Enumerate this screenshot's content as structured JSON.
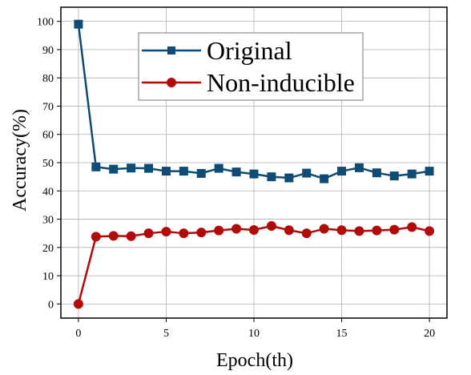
{
  "colors": {
    "original": "#0f4c75",
    "non_inducible": "#b00a0a"
  },
  "chart_data": {
    "type": "line",
    "title": "",
    "xlabel": "Epoch(th)",
    "ylabel": "Accuracy(%)",
    "xlim": [
      -1,
      21
    ],
    "ylim": [
      -5,
      105
    ],
    "xticks": [
      0,
      5,
      10,
      15,
      20
    ],
    "yticks": [
      0,
      10,
      20,
      30,
      40,
      50,
      60,
      70,
      80,
      90,
      100
    ],
    "grid": true,
    "legend_position": "top-center",
    "x": [
      0,
      1,
      2,
      3,
      4,
      5,
      6,
      7,
      8,
      9,
      10,
      11,
      12,
      13,
      14,
      15,
      16,
      17,
      18,
      19,
      20
    ],
    "series": [
      {
        "name": "Original",
        "marker": "square",
        "color": "#0f4c75",
        "values": [
          99,
          48.5,
          47.7,
          48.1,
          48.0,
          47.0,
          47.0,
          46.2,
          48.0,
          46.7,
          46.0,
          45.0,
          44.6,
          46.3,
          44.3,
          47.0,
          48.2,
          46.4,
          45.3,
          46.0,
          47.0
        ]
      },
      {
        "name": "Non-inducible",
        "marker": "circle",
        "color": "#b00a0a",
        "values": [
          0,
          23.8,
          24.1,
          24.0,
          25.0,
          25.6,
          25.0,
          25.3,
          26.0,
          26.6,
          26.2,
          27.6,
          26.1,
          25.0,
          26.6,
          26.1,
          25.8,
          26.0,
          26.3,
          27.2,
          25.8
        ]
      }
    ]
  }
}
